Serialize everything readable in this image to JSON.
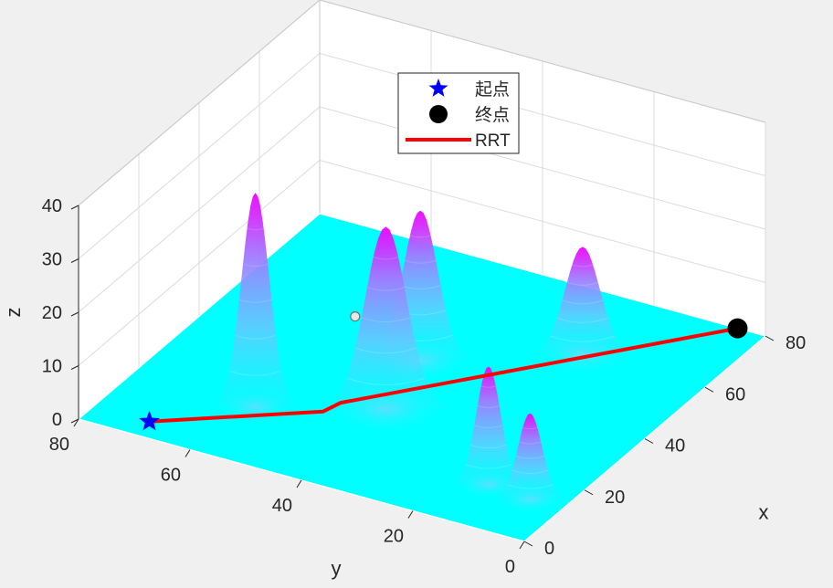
{
  "chart_data": {
    "type": "surface3d",
    "title": "",
    "xlabel": "x",
    "ylabel": "y",
    "zlabel": "z",
    "xlim": [
      0,
      80
    ],
    "ylim": [
      0,
      80
    ],
    "zlim": [
      0,
      40
    ],
    "x_ticks": [
      "0",
      "20",
      "40",
      "60",
      "80"
    ],
    "y_ticks": [
      "0",
      "20",
      "40",
      "60",
      "80"
    ],
    "z_ticks": [
      "0",
      "10",
      "20",
      "30",
      "40"
    ],
    "grid": true,
    "legend_position": "top-center",
    "legend": [
      {
        "label": "起点",
        "marker": "star",
        "color": "#0000ff"
      },
      {
        "label": "终点",
        "marker": "circle",
        "color": "#000000"
      },
      {
        "label": "RRT",
        "marker": "line",
        "color": "#ff0000"
      }
    ],
    "terrain_peaks": [
      {
        "x": 18,
        "y": 58,
        "height": 40,
        "width": 4
      },
      {
        "x": 28,
        "y": 40,
        "height": 34,
        "width": 6
      },
      {
        "x": 45,
        "y": 43,
        "height": 28,
        "width": 5
      },
      {
        "x": 60,
        "y": 22,
        "height": 20,
        "width": 5
      },
      {
        "x": 14,
        "y": 14,
        "height": 22,
        "width": 3.5
      },
      {
        "x": 13,
        "y": 6,
        "height": 16,
        "width": 3.5
      }
    ],
    "start": {
      "x": 5,
      "y": 70,
      "z": 0
    },
    "goal": {
      "x": 80,
      "y": 5,
      "z": 0
    },
    "rrt_path": [
      {
        "x": 5,
        "y": 70
      },
      {
        "x": 22,
        "y": 48
      },
      {
        "x": 26,
        "y": 47
      },
      {
        "x": 80,
        "y": 5
      }
    ],
    "sample_point": {
      "x": 40,
      "y": 52,
      "z": 8
    },
    "colors": {
      "floor": "#00ffff",
      "peak_base": "#66ccff",
      "peak_top": "#ff00ff",
      "path": "#ff0000",
      "start": "#0000ff",
      "goal": "#000000",
      "grid": "#dcdcdc",
      "axis": "#262626",
      "pane": "#ffffff"
    }
  }
}
